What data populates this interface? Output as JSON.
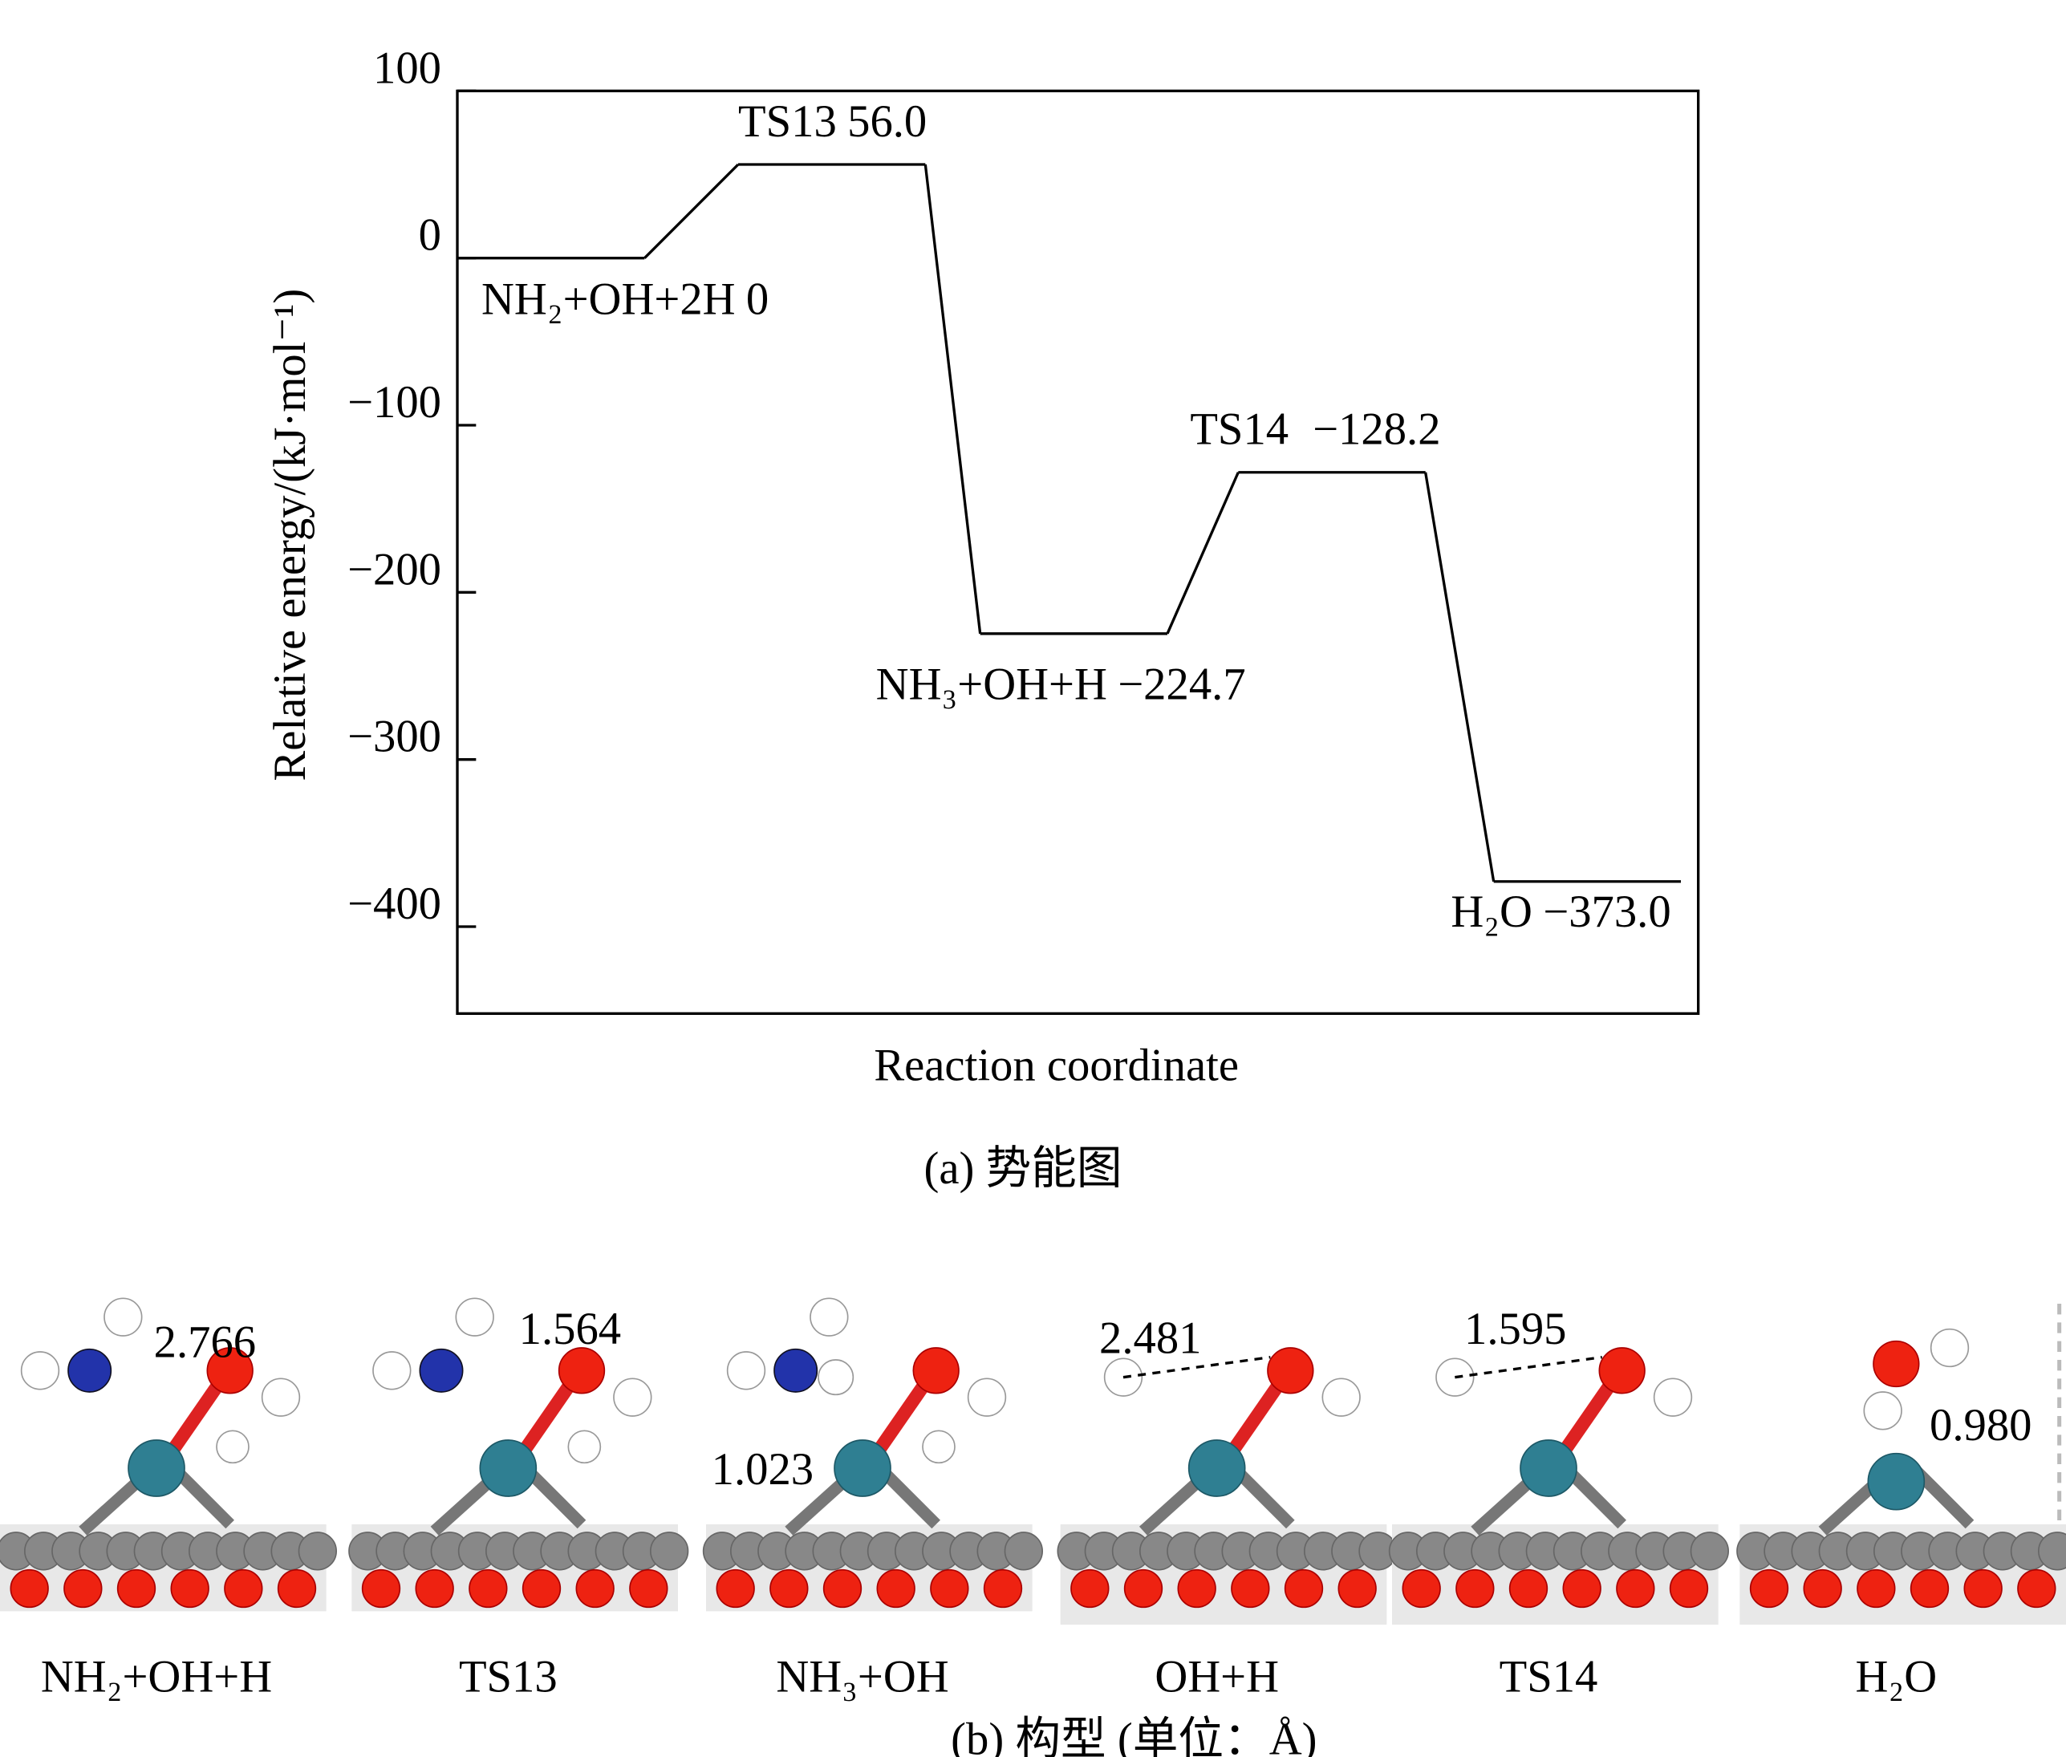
{
  "chart_data": {
    "type": "energy-profile",
    "ylabel": "Relative energy/(kJ·mol⁻¹)",
    "xlabel": "Reaction coordinate",
    "caption": "(a) 势能图",
    "categories": [
      "NH₂+OH+2H",
      "TS13",
      "NH₃+OH+H",
      "TS14",
      "H₂O"
    ],
    "values": [
      0,
      56.0,
      -224.7,
      -128.2,
      -373.0
    ],
    "value_labels": [
      "0",
      "56.0",
      "−224.7",
      "−128.2",
      "−373.0"
    ],
    "color": "#000000",
    "ylim": [
      -452,
      100
    ],
    "yticks": [
      100,
      0,
      {
        "value": -100,
        "label": "−100"
      },
      {
        "value": -200,
        "label": "−200"
      },
      {
        "value": -300,
        "label": "−300"
      },
      {
        "value": -400,
        "label": "−400"
      }
    ]
  },
  "structures": {
    "caption": "(b) 构型 (单位：Å)",
    "items": [
      {
        "label": "NH₂+OH+H",
        "distance": "2.766"
      },
      {
        "label": "TS13",
        "distance": "1.564"
      },
      {
        "label": "NH₃+OH",
        "distance": "1.023"
      },
      {
        "label": "OH+H",
        "distance": "2.481"
      },
      {
        "label": "TS14",
        "distance": "1.595"
      },
      {
        "label": "H₂O",
        "distance": "0.980"
      }
    ]
  }
}
